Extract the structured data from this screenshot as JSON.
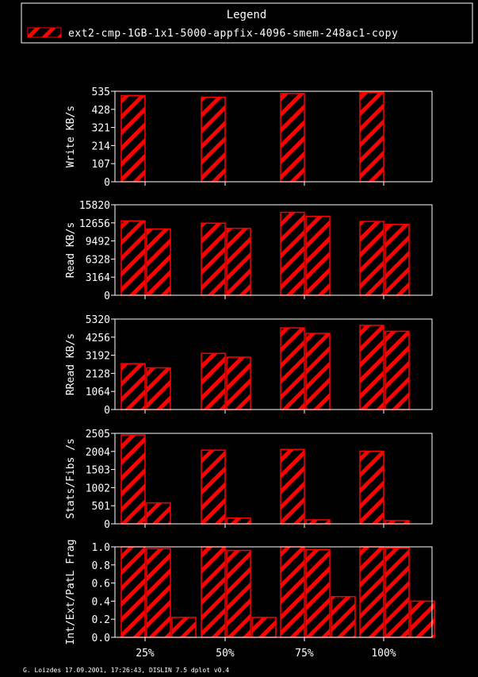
{
  "legend": {
    "title": "Legend",
    "entries": [
      "ext2-cmp-1GB-1x1-5000-appfix-4096-smem-248ac1-copy"
    ]
  },
  "footer": "G. Loizdes 17.09.2001, 17:26:43, DISLIN 7.5 dplot v0.4",
  "colors": {
    "bar": "#ff0000",
    "axis": "#ffffff",
    "background": "#000000"
  },
  "chart_data": [
    {
      "type": "bar",
      "ylabel": "Write KB/s",
      "categories": [
        "25%",
        "50%",
        "75%",
        "100%"
      ],
      "ylim": [
        0,
        535
      ],
      "yticks": [
        "0",
        "107",
        "214",
        "321",
        "428",
        "535"
      ],
      "series": [
        {
          "values": [
            510,
            500,
            522,
            528
          ]
        }
      ]
    },
    {
      "type": "bar",
      "ylabel": "Read KB/s",
      "categories": [
        "25%",
        "50%",
        "75%",
        "100%"
      ],
      "ylim": [
        0,
        15820
      ],
      "yticks": [
        "0",
        "3164",
        "6328",
        "9492",
        "12656",
        "15820"
      ],
      "series": [
        {
          "values": [
            13000,
            12600,
            14500,
            12900
          ]
        },
        {
          "values": [
            11600,
            11700,
            13800,
            12400
          ]
        }
      ]
    },
    {
      "type": "bar",
      "ylabel": "RRead KB/s",
      "categories": [
        "25%",
        "50%",
        "75%",
        "100%"
      ],
      "ylim": [
        0,
        5320
      ],
      "yticks": [
        "0",
        "1064",
        "2128",
        "3192",
        "4256",
        "5320"
      ],
      "series": [
        {
          "values": [
            2700,
            3300,
            4800,
            4950
          ]
        },
        {
          "values": [
            2450,
            3080,
            4480,
            4600
          ]
        }
      ]
    },
    {
      "type": "bar",
      "ylabel": "Stats/Fibs /s",
      "categories": [
        "25%",
        "50%",
        "75%",
        "100%"
      ],
      "ylim": [
        0,
        2505
      ],
      "yticks": [
        "0",
        "501",
        "1002",
        "1503",
        "2004",
        "2505"
      ],
      "series": [
        {
          "values": [
            2460,
            2040,
            2060,
            2010
          ]
        },
        {
          "values": [
            580,
            160,
            110,
            90
          ]
        }
      ]
    },
    {
      "type": "bar",
      "ylabel": "Int/Ext/PatL Frag",
      "categories": [
        "25%",
        "50%",
        "75%",
        "100%"
      ],
      "ylim": [
        0,
        1.0
      ],
      "yticks": [
        "0.0",
        "0.2",
        "0.4",
        "0.6",
        "0.8",
        "1.0"
      ],
      "series": [
        {
          "values": [
            1.0,
            1.0,
            1.0,
            1.0
          ]
        },
        {
          "values": [
            0.98,
            0.96,
            0.97,
            0.99
          ]
        },
        {
          "values": [
            0.22,
            0.22,
            0.45,
            0.4
          ]
        }
      ]
    }
  ]
}
